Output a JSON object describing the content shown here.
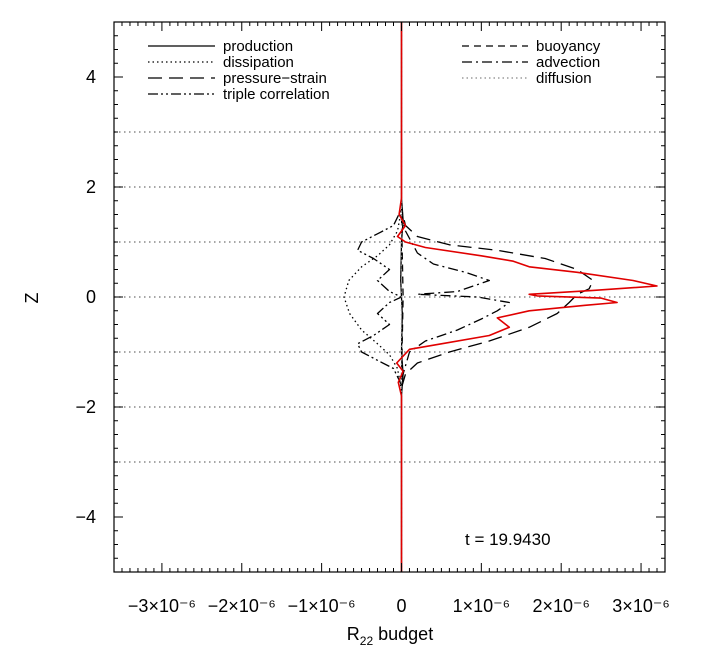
{
  "chart_data": {
    "type": "line",
    "xlabel_main": "R",
    "xlabel_sub": "22",
    "xlabel_rest": " budget",
    "ylabel": "Z",
    "xlim": [
      -3.6e-06,
      3.3e-06
    ],
    "ylim": [
      -5,
      5
    ],
    "x_ticks": [
      {
        "value": -3e-06,
        "label": "−3×10⁻⁶"
      },
      {
        "value": -2e-06,
        "label": "−2×10⁻⁶"
      },
      {
        "value": -1e-06,
        "label": "−1×10⁻⁶"
      },
      {
        "value": 0,
        "label": "0"
      },
      {
        "value": 1e-06,
        "label": "1×10⁻⁶"
      },
      {
        "value": 2e-06,
        "label": "2×10⁻⁶"
      },
      {
        "value": 3e-06,
        "label": "3×10⁻⁶"
      }
    ],
    "y_ticks": [
      {
        "value": -4,
        "label": "−4"
      },
      {
        "value": -2,
        "label": "−2"
      },
      {
        "value": 0,
        "label": "0"
      },
      {
        "value": 2,
        "label": "2"
      },
      {
        "value": 4,
        "label": "4"
      }
    ],
    "h_gridlines": [
      -3,
      -2,
      -1,
      0,
      1,
      2,
      3
    ],
    "annotation": "t  =  19.9430",
    "legend_left": [
      "production",
      "dissipation",
      "pressure−strain",
      "triple correlation"
    ],
    "legend_right": [
      "buoyancy",
      "advection",
      "diffusion"
    ],
    "colors": {
      "axis": "#000000",
      "grid": "#888888",
      "total": "#e00000"
    },
    "series": [
      {
        "name": "production",
        "style": "solid",
        "color": "#000000",
        "points": [
          [
            0,
            -5
          ],
          [
            0,
            -1.8
          ],
          [
            2e-08,
            -1.4
          ],
          [
            0,
            -1
          ],
          [
            1e-08,
            -0.3
          ],
          [
            0,
            0
          ],
          [
            -1e-08,
            0.3
          ],
          [
            0,
            1
          ],
          [
            2e-08,
            1.4
          ],
          [
            0,
            1.8
          ],
          [
            0,
            5
          ]
        ]
      },
      {
        "name": "dissipation",
        "style": "dotted",
        "color": "#000000",
        "points": [
          [
            0,
            -1.7
          ],
          [
            -5e-08,
            -1.3
          ],
          [
            -1.5e-07,
            -1.05
          ],
          [
            -3e-07,
            -0.85
          ],
          [
            -5e-07,
            -0.6
          ],
          [
            -6.5e-07,
            -0.3
          ],
          [
            -7.2e-07,
            0
          ],
          [
            -6.6e-07,
            0.3
          ],
          [
            -5e-07,
            0.55
          ],
          [
            -3e-07,
            0.75
          ],
          [
            -1.5e-07,
            0.95
          ],
          [
            -5e-08,
            1.2
          ],
          [
            0,
            1.6
          ]
        ]
      },
      {
        "name": "pressure−strain",
        "style": "longdash",
        "color": "#000000",
        "points": [
          [
            0,
            -1.65
          ],
          [
            5e-08,
            -1.4
          ],
          [
            2e-07,
            -1.2
          ],
          [
            6e-07,
            -1.0
          ],
          [
            1.1e-06,
            -0.8
          ],
          [
            1.6e-06,
            -0.55
          ],
          [
            1.95e-06,
            -0.3
          ],
          [
            2.1e-06,
            -0.1
          ],
          [
            2.2e-06,
            0.05
          ],
          [
            2.35e-06,
            0.15
          ],
          [
            2.4e-06,
            0.3
          ],
          [
            2.2e-06,
            0.5
          ],
          [
            1.8e-06,
            0.7
          ],
          [
            1.2e-06,
            0.85
          ],
          [
            6e-07,
            0.95
          ],
          [
            2e-07,
            1.1
          ],
          [
            5e-08,
            1.3
          ],
          [
            0,
            1.6
          ]
        ]
      },
      {
        "name": "triple correlation",
        "style": "dashdotdot",
        "color": "#000000",
        "points": [
          [
            0,
            -1.6
          ],
          [
            -1e-07,
            -1.3
          ],
          [
            -3e-07,
            -1.15
          ],
          [
            -5e-07,
            -1.0
          ],
          [
            -5.5e-07,
            -0.85
          ],
          [
            -3.5e-07,
            -0.7
          ],
          [
            -1.5e-07,
            -0.5
          ],
          [
            -3e-07,
            -0.3
          ],
          [
            -1.5e-07,
            -0.1
          ],
          [
            0,
            0
          ],
          [
            -1.5e-07,
            0.1
          ],
          [
            -3e-07,
            0.3
          ],
          [
            -1.5e-07,
            0.5
          ],
          [
            -3.5e-07,
            0.7
          ],
          [
            -5.5e-07,
            0.85
          ],
          [
            -5e-07,
            1.0
          ],
          [
            -3e-07,
            1.15
          ],
          [
            -1e-07,
            1.3
          ],
          [
            0,
            1.6
          ]
        ]
      },
      {
        "name": "buoyancy",
        "style": "dashed",
        "color": "#000000",
        "points": [
          [
            0,
            -1.5
          ],
          [
            2e-08,
            0
          ],
          [
            0,
            1.5
          ]
        ]
      },
      {
        "name": "advection",
        "style": "dashdot",
        "color": "#000000",
        "points": [
          [
            0,
            -1.5
          ],
          [
            1e-07,
            -1.0
          ],
          [
            3e-07,
            -0.8
          ],
          [
            7e-07,
            -0.6
          ],
          [
            1e-06,
            -0.4
          ],
          [
            1.2e-06,
            -0.25
          ],
          [
            1.35e-06,
            -0.1
          ],
          [
            9.5e-07,
            0
          ],
          [
            5e-07,
            0.03
          ],
          [
            2e-07,
            0.05
          ],
          [
            7e-07,
            0.1
          ],
          [
            1.1e-06,
            0.3
          ],
          [
            8e-07,
            0.45
          ],
          [
            4e-07,
            0.6
          ],
          [
            2e-07,
            0.8
          ],
          [
            5e-08,
            1.2
          ],
          [
            0,
            1.5
          ]
        ]
      },
      {
        "name": "diffusion",
        "style": "lightdotted",
        "color": "#888888",
        "points": [
          [
            0,
            -5
          ],
          [
            0,
            5
          ]
        ]
      },
      {
        "name": "total",
        "style": "solid",
        "color": "#e00000",
        "points": [
          [
            0,
            -5
          ],
          [
            0,
            -1.8
          ],
          [
            -4e-08,
            -1.55
          ],
          [
            2e-08,
            -1.35
          ],
          [
            -6e-08,
            -1.2
          ],
          [
            1e-07,
            -0.95
          ],
          [
            5e-07,
            -0.85
          ],
          [
            1.1e-06,
            -0.7
          ],
          [
            1.35e-06,
            -0.55
          ],
          [
            1.2e-06,
            -0.38
          ],
          [
            1.6e-06,
            -0.25
          ],
          [
            2.3e-06,
            -0.15
          ],
          [
            2.7e-06,
            -0.1
          ],
          [
            2.5e-06,
            -0.02
          ],
          [
            1.7e-06,
            0.02
          ],
          [
            1.6e-06,
            0.05
          ],
          [
            2.4e-06,
            0.12
          ],
          [
            3.2e-06,
            0.2
          ],
          [
            2.9e-06,
            0.3
          ],
          [
            2.2e-06,
            0.45
          ],
          [
            1.6e-06,
            0.55
          ],
          [
            1.4e-06,
            0.65
          ],
          [
            1e-06,
            0.75
          ],
          [
            3e-07,
            0.9
          ],
          [
            5e-08,
            1.0
          ],
          [
            -5e-08,
            1.1
          ],
          [
            5e-08,
            1.3
          ],
          [
            -3e-08,
            1.5
          ],
          [
            0,
            1.8
          ],
          [
            0,
            5
          ]
        ]
      }
    ]
  }
}
